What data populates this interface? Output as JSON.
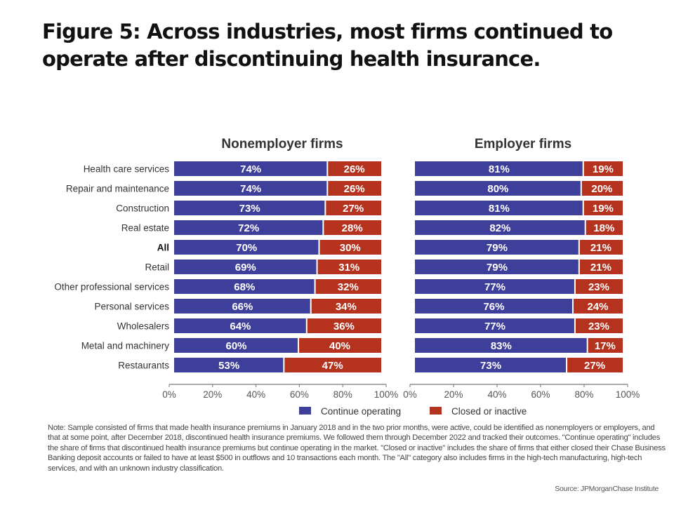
{
  "title": "Figure 5: Across industries, most firms continued to operate after discontinuing health insurance.",
  "note": "Note: Sample consisted of firms that made health insurance premiums in January 2018 and in the two prior months, were active, could be identified as nonemployers or employers, and that at some point, after December 2018, discontinued health insurance premiums. We followed them through December 2022 and tracked their outcomes. \"Continue operating\" includes the share of firms that discontinued health insurance premiums but continue operating in the market. \"Closed or inactive\" includes the share of firms that either closed their Chase Business Banking deposit accounts or failed to have at least $500 in outflows and 10 transactions each month. The \"All\" category also includes firms in the high-tech manufacturing, high-tech services, and with an unknown industry classification.",
  "source": "Source: JPMorganChase Institute",
  "colors": {
    "continue": "#3d3f9b",
    "closed": "#b5321e"
  },
  "chart_data": {
    "type": "bar",
    "orientation": "horizontal-stacked-percent",
    "categories": [
      "Health care services",
      "Repair and maintenance",
      "Construction",
      "Real estate",
      "All",
      "Retail",
      "Other professional services",
      "Personal services",
      "Wholesalers",
      "Metal and machinery",
      "Restaurants"
    ],
    "bold_categories": [
      "All"
    ],
    "legend": {
      "position": "bottom",
      "entries": [
        "Continue operating",
        "Closed or inactive"
      ]
    },
    "xlim": [
      0,
      100
    ],
    "xticks": [
      "0%",
      "20%",
      "40%",
      "60%",
      "80%",
      "100%"
    ],
    "panels": [
      {
        "title": "Nonemployer firms",
        "series": [
          {
            "name": "Continue operating",
            "values": [
              74,
              74,
              73,
              72,
              70,
              69,
              68,
              66,
              64,
              60,
              53
            ]
          },
          {
            "name": "Closed or inactive",
            "values": [
              26,
              26,
              27,
              28,
              30,
              31,
              32,
              34,
              36,
              40,
              47
            ]
          }
        ]
      },
      {
        "title": "Employer firms",
        "series": [
          {
            "name": "Continue operating",
            "values": [
              81,
              80,
              81,
              82,
              79,
              79,
              77,
              76,
              77,
              83,
              73
            ]
          },
          {
            "name": "Closed or inactive",
            "values": [
              19,
              20,
              19,
              18,
              21,
              21,
              23,
              24,
              23,
              17,
              27
            ]
          }
        ]
      }
    ]
  }
}
